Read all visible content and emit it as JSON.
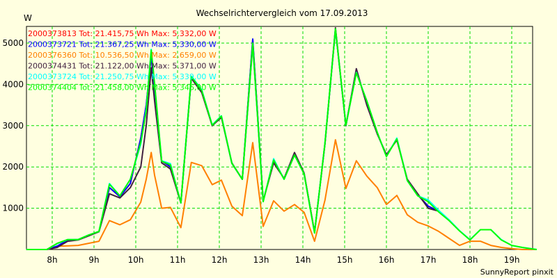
{
  "chart_data": {
    "type": "line",
    "title": "Wechselrichtervergleich vom 17.09.2013",
    "ylabel": "W",
    "xlabel": "",
    "footer": "SunnyReport pinxit",
    "xlim": [
      7.38,
      19.7
    ],
    "ylim": [
      0,
      5400
    ],
    "grid": true,
    "legend_position": "top-left",
    "x_ticks": [
      8,
      9,
      10,
      11,
      12,
      13,
      14,
      15,
      16,
      17,
      18,
      19
    ],
    "x_tick_labels": [
      "8h",
      "9h",
      "10h",
      "11h",
      "12h",
      "13h",
      "14h",
      "15h",
      "16h",
      "17h",
      "18h",
      "19h"
    ],
    "y_ticks": [
      1000,
      2000,
      3000,
      4000,
      5000
    ],
    "y_tick_labels": [
      "1000",
      "2000",
      "3000",
      "4000",
      "5000"
    ],
    "x": [
      7.38,
      7.87,
      8.12,
      8.37,
      8.62,
      8.87,
      9.12,
      9.37,
      9.62,
      9.87,
      10.12,
      10.25,
      10.37,
      10.45,
      10.62,
      10.83,
      11.08,
      11.33,
      11.58,
      11.83,
      12.05,
      12.3,
      12.55,
      12.8,
      13.05,
      13.3,
      13.55,
      13.8,
      14.03,
      14.28,
      14.53,
      14.78,
      15.03,
      15.28,
      15.53,
      15.78,
      16.0,
      16.25,
      16.5,
      16.75,
      17.0,
      17.25,
      17.5,
      17.75,
      18.0,
      18.25,
      18.5,
      18.75,
      19.0,
      19.25,
      19.6
    ],
    "series": [
      {
        "name": "2000373813",
        "legend": "2000373813 Tot: 21.415,75 Wh Max: 5.332,00 W",
        "color": "#ff0000",
        "values": [
          0,
          0,
          80,
          230,
          240,
          340,
          440,
          1500,
          1280,
          1600,
          2700,
          3500,
          4700,
          3800,
          2150,
          2000,
          1130,
          4180,
          3850,
          3000,
          3220,
          2090,
          1700,
          5080,
          1170,
          2150,
          1710,
          2300,
          1840,
          410,
          2580,
          5332,
          3000,
          4350,
          3520,
          2820,
          2270,
          2680,
          1680,
          1320,
          1050,
          930,
          null,
          null,
          null,
          null,
          null,
          null,
          null,
          null,
          null
        ]
      },
      {
        "name": "2000373721",
        "legend": "2000373721 Tot: 21.367,25 Wh Max: 5.330,00 W",
        "color": "#0000ff",
        "values": [
          0,
          0,
          80,
          230,
          240,
          340,
          440,
          1500,
          1280,
          1600,
          2700,
          3500,
          4700,
          3800,
          2150,
          2000,
          1130,
          4180,
          3850,
          3000,
          3220,
          2090,
          1700,
          5100,
          1170,
          2150,
          1710,
          2300,
          1840,
          410,
          2580,
          5330,
          3000,
          4350,
          3520,
          2820,
          2270,
          2680,
          1680,
          1320,
          1050,
          930,
          null,
          null,
          null,
          null,
          null,
          null,
          null,
          null,
          null
        ]
      },
      {
        "name": "2000376360",
        "legend": "2000376360 Tot: 10.536,50 Wh Max: 2.659,00 W",
        "color": "#ff8000",
        "values": [
          0,
          0,
          80,
          90,
          100,
          150,
          200,
          700,
          600,
          720,
          1150,
          1700,
          2350,
          1800,
          1000,
          1020,
          530,
          2110,
          2030,
          1570,
          1680,
          1050,
          820,
          2590,
          560,
          1180,
          930,
          1090,
          900,
          200,
          1200,
          2659,
          1480,
          2150,
          1780,
          1500,
          1090,
          1310,
          840,
          660,
          570,
          440,
          270,
          100,
          200,
          200,
          100,
          50,
          20,
          0,
          0
        ]
      },
      {
        "name": "2000374431",
        "legend": "2000374431 Tot: 21.122,00 Wh Max: 5.371,00 W",
        "color": "#402040",
        "values": [
          0,
          0,
          50,
          200,
          230,
          330,
          430,
          1350,
          1250,
          1500,
          2000,
          3000,
          4400,
          3600,
          2100,
          1950,
          1130,
          4150,
          3800,
          3000,
          3200,
          2100,
          1700,
          4950,
          1180,
          2100,
          1720,
          2350,
          1850,
          420,
          2560,
          5371,
          3000,
          4380,
          3500,
          2800,
          2300,
          2650,
          1700,
          1350,
          1000,
          930,
          null,
          null,
          null,
          null,
          null,
          null,
          null,
          null,
          null
        ]
      },
      {
        "name": "2000373724",
        "legend": "2000373724 Tot: 21.250,75 Wh Max: 5.339,00 W",
        "color": "#00ffff",
        "values": [
          0,
          0,
          140,
          240,
          240,
          350,
          440,
          1600,
          1300,
          1700,
          2550,
          3400,
          4850,
          4000,
          2150,
          2080,
          1130,
          4200,
          3870,
          3020,
          3240,
          2090,
          1700,
          4980,
          1160,
          2200,
          1700,
          2290,
          1830,
          400,
          2590,
          5339,
          3010,
          4290,
          3600,
          2840,
          2250,
          2700,
          1670,
          1300,
          1200,
          950,
          720,
          460,
          240,
          480,
          480,
          240,
          100,
          50,
          0
        ]
      },
      {
        "name": "2000374404",
        "legend": "2000374404 Tot: 21.458,00 Wh Max: 5.346,00 W",
        "color": "#00ff00",
        "values": [
          0,
          0,
          150,
          240,
          240,
          350,
          440,
          1580,
          1300,
          1700,
          2600,
          3350,
          4830,
          4020,
          2140,
          2050,
          1130,
          4190,
          3850,
          3010,
          3230,
          2090,
          1700,
          5000,
          1160,
          2170,
          1700,
          2290,
          1830,
          400,
          2590,
          5346,
          3010,
          4280,
          3600,
          2840,
          2250,
          2680,
          1670,
          1300,
          1160,
          910,
          700,
          450,
          230,
          480,
          480,
          230,
          100,
          50,
          0
        ]
      }
    ]
  }
}
